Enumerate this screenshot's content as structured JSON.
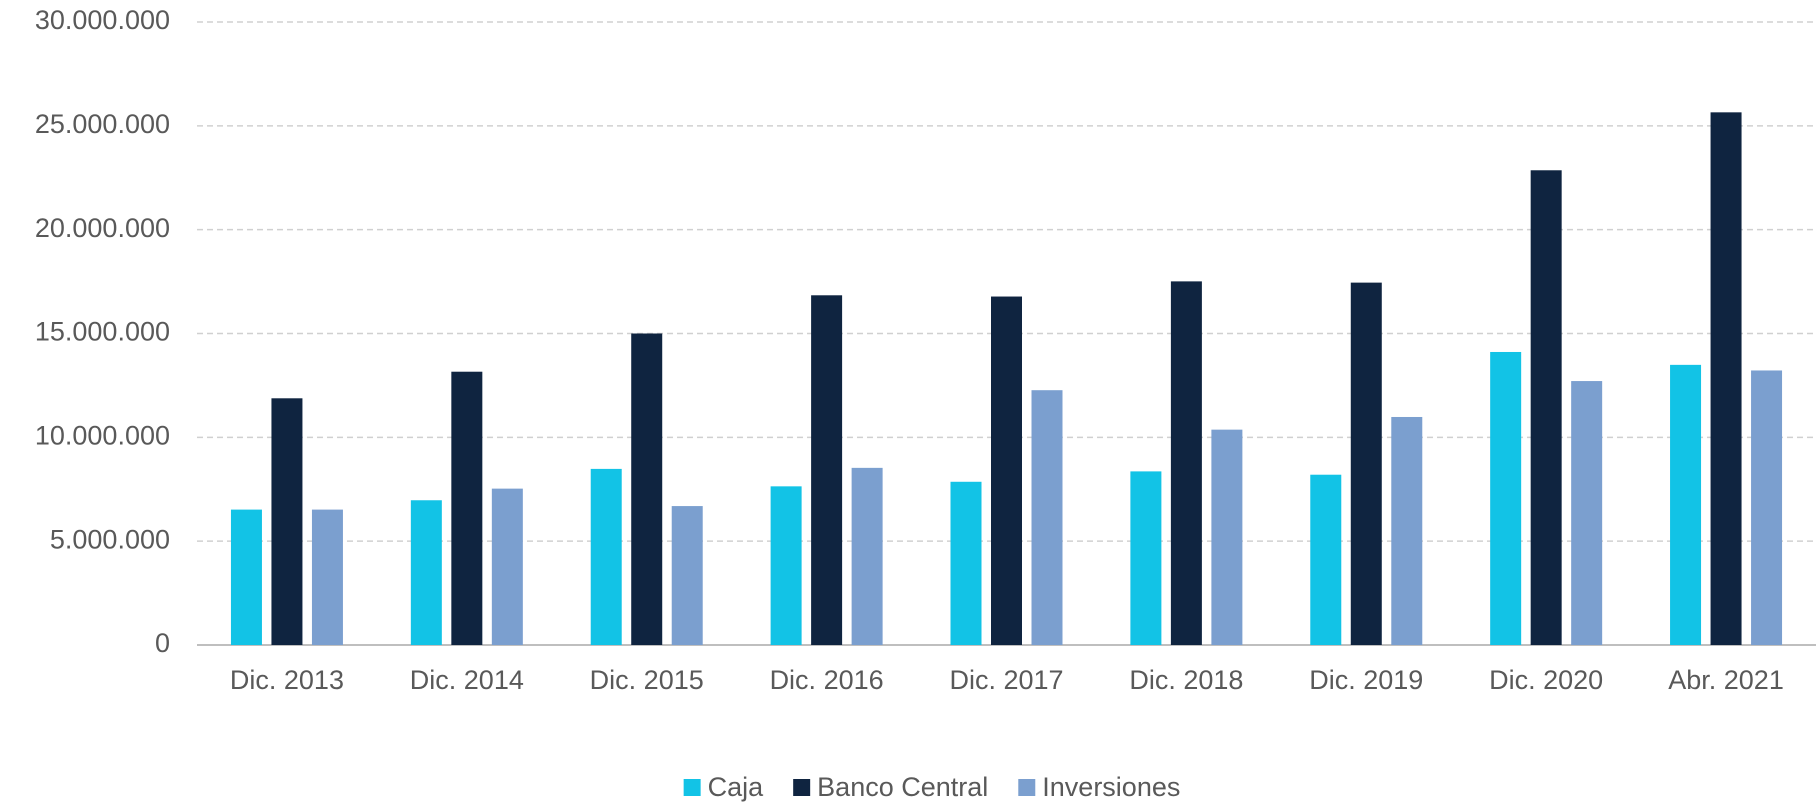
{
  "chart_data": {
    "type": "bar",
    "categories": [
      "Dic. 2013",
      "Dic. 2014",
      "Dic. 2015",
      "Dic. 2016",
      "Dic. 2017",
      "Dic. 2018",
      "Dic. 2019",
      "Dic. 2020",
      "Abr. 2021"
    ],
    "series": [
      {
        "name": "Caja",
        "color": "#12c3e6",
        "values": [
          6520000,
          6970000,
          8480000,
          7640000,
          7860000,
          8360000,
          8200000,
          14110000,
          13490000
        ]
      },
      {
        "name": "Banco Central",
        "color": "#0f2440",
        "values": [
          11880000,
          13160000,
          15000000,
          16840000,
          16780000,
          17510000,
          17450000,
          22860000,
          25650000
        ]
      },
      {
        "name": "Inversiones",
        "color": "#7b9fcf",
        "values": [
          6520000,
          7530000,
          6690000,
          8530000,
          12270000,
          10370000,
          10980000,
          12710000,
          13220000
        ]
      }
    ],
    "ylim": [
      0,
      30000000
    ],
    "yticks": [
      0,
      {
        "value": 5000000,
        "label": "5.000.000"
      },
      {
        "value": 10000000,
        "label": "10.000.000"
      },
      {
        "value": 15000000,
        "label": "15.000.000"
      },
      {
        "value": 20000000,
        "label": "20.000.000"
      },
      {
        "value": 25000000,
        "label": "25.000.000"
      },
      {
        "value": 30000000,
        "label": "30.000.000"
      }
    ],
    "grid": true,
    "legend": "bottom"
  }
}
